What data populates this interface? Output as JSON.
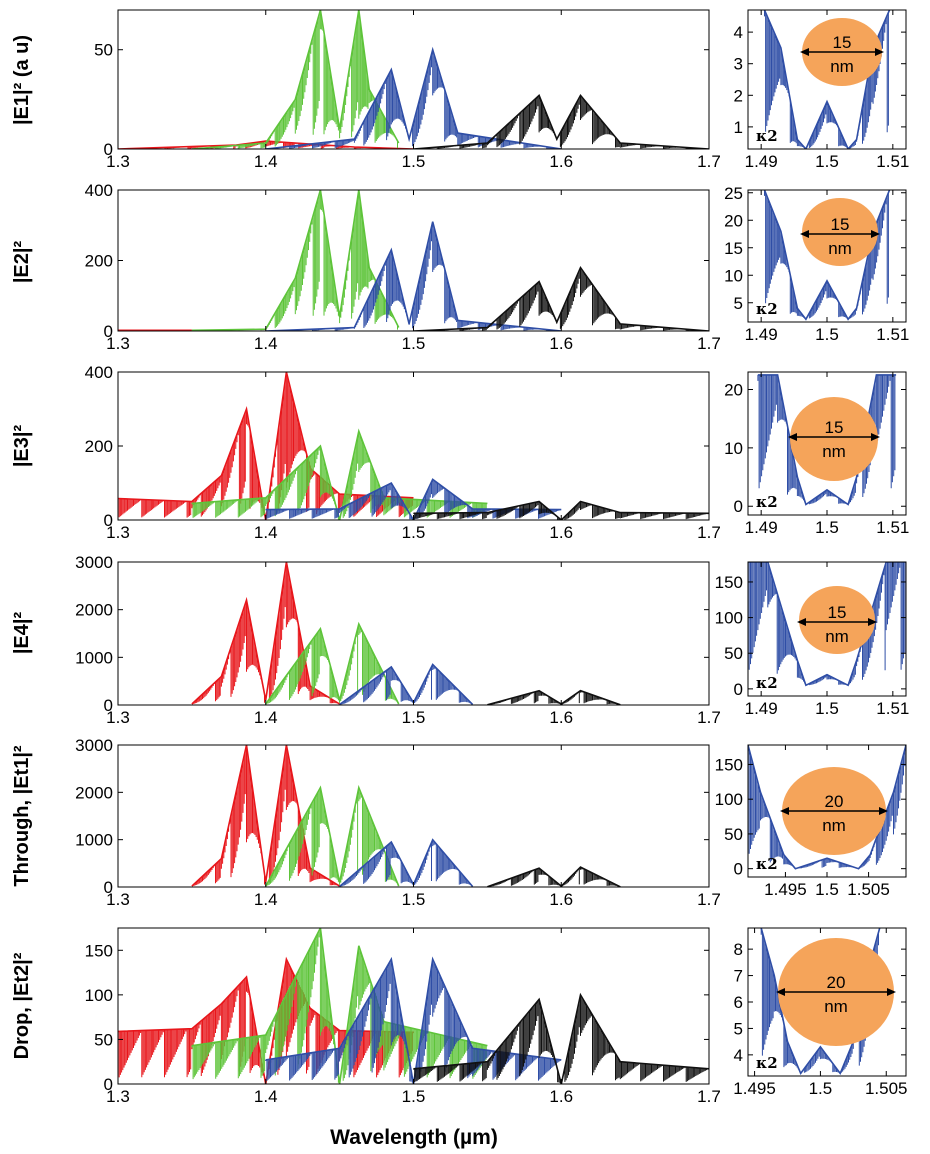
{
  "figure": {
    "xlabel": "Wavelength (µm)"
  },
  "colors": {
    "red": "#e8161b",
    "green": "#5ec43a",
    "blue": "#2f4ea6",
    "black": "#111111",
    "orange": "#f5a45a"
  },
  "chart_data": [
    {
      "type": "line",
      "panel": "main-1",
      "ylabel": "|E1|² (a u)",
      "xlim": [
        1.3,
        1.7
      ],
      "ylim": [
        0,
        70
      ],
      "xticks": [
        "1.3",
        "1.4",
        "1.5",
        "1.6",
        "1.7"
      ],
      "yticks": [
        "0",
        "50"
      ],
      "series": [
        {
          "color": "red",
          "x": [
            1.3,
            1.38,
            1.4,
            1.42,
            1.44,
            1.46,
            1.5
          ],
          "y": [
            0,
            2,
            4,
            3,
            2,
            1,
            0
          ]
        },
        {
          "color": "green",
          "x": [
            1.35,
            1.4,
            1.42,
            1.437,
            1.45,
            1.463,
            1.47,
            1.49
          ],
          "y": [
            0,
            3,
            25,
            70,
            10,
            70,
            30,
            3
          ]
        },
        {
          "color": "blue",
          "x": [
            1.4,
            1.46,
            1.485,
            1.497,
            1.513,
            1.53,
            1.6
          ],
          "y": [
            0,
            5,
            40,
            5,
            50,
            8,
            0
          ]
        },
        {
          "color": "black",
          "x": [
            1.5,
            1.55,
            1.585,
            1.597,
            1.613,
            1.64,
            1.7
          ],
          "y": [
            0,
            3,
            27,
            5,
            27,
            3,
            0
          ]
        }
      ]
    },
    {
      "type": "line",
      "panel": "main-2",
      "ylabel": "|E2|²",
      "xlim": [
        1.3,
        1.7
      ],
      "ylim": [
        0,
        400
      ],
      "xticks": [
        "1.3",
        "1.4",
        "1.5",
        "1.6",
        "1.7"
      ],
      "yticks": [
        "0",
        "200",
        "400"
      ],
      "series": [
        {
          "color": "red",
          "x": [
            1.3,
            1.35
          ],
          "y": [
            2,
            2
          ]
        },
        {
          "color": "green",
          "x": [
            1.35,
            1.4,
            1.42,
            1.437,
            1.45,
            1.463,
            1.47,
            1.49
          ],
          "y": [
            2,
            5,
            150,
            400,
            40,
            400,
            180,
            10
          ]
        },
        {
          "color": "blue",
          "x": [
            1.4,
            1.46,
            1.485,
            1.497,
            1.513,
            1.53,
            1.6
          ],
          "y": [
            0,
            10,
            230,
            20,
            310,
            30,
            0
          ]
        },
        {
          "color": "black",
          "x": [
            1.5,
            1.55,
            1.585,
            1.597,
            1.613,
            1.64,
            1.7
          ],
          "y": [
            0,
            10,
            140,
            25,
            180,
            20,
            0
          ]
        }
      ]
    },
    {
      "type": "line",
      "panel": "main-3",
      "ylabel": "|E3|²",
      "xlim": [
        1.3,
        1.7
      ],
      "ylim": [
        0,
        400
      ],
      "xticks": [
        "1.3",
        "1.4",
        "1.5",
        "1.6",
        "1.7"
      ],
      "yticks": [
        "0",
        "200",
        "400"
      ],
      "series": [
        {
          "color": "red",
          "x": [
            1.3,
            1.35,
            1.37,
            1.387,
            1.4,
            1.414,
            1.43,
            1.45,
            1.5
          ],
          "y": [
            58,
            50,
            120,
            300,
            0,
            400,
            140,
            70,
            60
          ]
        },
        {
          "color": "green",
          "x": [
            1.35,
            1.4,
            1.437,
            1.45,
            1.463,
            1.48,
            1.55
          ],
          "y": [
            45,
            60,
            200,
            0,
            240,
            60,
            45
          ]
        },
        {
          "color": "blue",
          "x": [
            1.4,
            1.45,
            1.485,
            1.5,
            1.513,
            1.54,
            1.6
          ],
          "y": [
            28,
            30,
            100,
            0,
            110,
            30,
            28
          ]
        },
        {
          "color": "black",
          "x": [
            1.5,
            1.55,
            1.585,
            1.6,
            1.613,
            1.64,
            1.7
          ],
          "y": [
            18,
            20,
            50,
            0,
            50,
            20,
            18
          ]
        }
      ]
    },
    {
      "type": "line",
      "panel": "main-4",
      "ylabel": "|E4|²",
      "xlim": [
        1.3,
        1.7
      ],
      "ylim": [
        0,
        3000
      ],
      "xticks": [
        "1.3",
        "1.4",
        "1.5",
        "1.6",
        "1.7"
      ],
      "yticks": [
        "0",
        "1000",
        "2000",
        "3000"
      ],
      "series": [
        {
          "color": "red",
          "x": [
            1.35,
            1.37,
            1.387,
            1.4,
            1.414,
            1.43,
            1.45
          ],
          "y": [
            20,
            600,
            2200,
            100,
            3000,
            400,
            20
          ]
        },
        {
          "color": "green",
          "x": [
            1.4,
            1.437,
            1.45,
            1.463,
            1.49
          ],
          "y": [
            20,
            1600,
            100,
            1700,
            20
          ]
        },
        {
          "color": "blue",
          "x": [
            1.45,
            1.485,
            1.5,
            1.513,
            1.54
          ],
          "y": [
            10,
            800,
            50,
            850,
            10
          ]
        },
        {
          "color": "black",
          "x": [
            1.55,
            1.585,
            1.6,
            1.613,
            1.64
          ],
          "y": [
            5,
            300,
            20,
            300,
            5
          ]
        }
      ]
    },
    {
      "type": "line",
      "panel": "main-5",
      "ylabel": "Through, |Et1|²",
      "xlim": [
        1.3,
        1.7
      ],
      "ylim": [
        0,
        3000
      ],
      "xticks": [
        "1.3",
        "1.4",
        "1.5",
        "1.6",
        "1.7"
      ],
      "yticks": [
        "0",
        "1000",
        "2000",
        "3000"
      ],
      "series": [
        {
          "color": "red",
          "x": [
            1.35,
            1.37,
            1.387,
            1.4,
            1.414,
            1.43,
            1.45
          ],
          "y": [
            20,
            600,
            3000,
            100,
            3000,
            400,
            20
          ]
        },
        {
          "color": "green",
          "x": [
            1.4,
            1.437,
            1.45,
            1.463,
            1.49
          ],
          "y": [
            20,
            2100,
            100,
            2100,
            20
          ]
        },
        {
          "color": "blue",
          "x": [
            1.45,
            1.485,
            1.5,
            1.513,
            1.54
          ],
          "y": [
            10,
            950,
            50,
            1000,
            10
          ]
        },
        {
          "color": "black",
          "x": [
            1.55,
            1.585,
            1.6,
            1.613,
            1.64
          ],
          "y": [
            5,
            400,
            20,
            420,
            5
          ]
        }
      ]
    },
    {
      "type": "line",
      "panel": "main-6",
      "ylabel": "Drop, |Et2|²",
      "xlim": [
        1.3,
        1.7
      ],
      "ylim": [
        0,
        175
      ],
      "xticks": [
        "1.3",
        "1.4",
        "1.5",
        "1.6",
        "1.7"
      ],
      "yticks": [
        "0",
        "50",
        "100",
        "150"
      ],
      "series": [
        {
          "color": "red",
          "x": [
            1.3,
            1.35,
            1.37,
            1.387,
            1.4,
            1.414,
            1.43,
            1.45,
            1.5
          ],
          "y": [
            59,
            62,
            90,
            120,
            0,
            140,
            85,
            60,
            58
          ]
        },
        {
          "color": "green",
          "x": [
            1.35,
            1.4,
            1.437,
            1.45,
            1.463,
            1.48,
            1.55
          ],
          "y": [
            43,
            55,
            175,
            0,
            155,
            70,
            43
          ]
        },
        {
          "color": "blue",
          "x": [
            1.4,
            1.45,
            1.485,
            1.5,
            1.513,
            1.54,
            1.6
          ],
          "y": [
            27,
            40,
            140,
            0,
            140,
            40,
            27
          ]
        },
        {
          "color": "black",
          "x": [
            1.5,
            1.55,
            1.585,
            1.6,
            1.613,
            1.64,
            1.7
          ],
          "y": [
            17,
            25,
            95,
            0,
            100,
            25,
            17
          ]
        }
      ]
    },
    {
      "type": "line",
      "panel": "inset-1",
      "xlim": [
        1.488,
        1.512
      ],
      "ylim": [
        0.3,
        4.7
      ],
      "xticks": [
        "1.49",
        "1.5",
        "1.51"
      ],
      "yticks": [
        "1",
        "2",
        "3",
        "4"
      ],
      "annotation": {
        "value": "15",
        "unit": "nm"
      },
      "kappa": "κ2",
      "series": [
        {
          "color": "blue",
          "x": [
            1.4905,
            1.493,
            1.4955,
            1.4968,
            1.5,
            1.5032,
            1.5045,
            1.507,
            1.5095
          ],
          "y": [
            4.7,
            3.5,
            0.6,
            0.3,
            1.8,
            0.3,
            0.6,
            3.5,
            4.7
          ]
        }
      ]
    },
    {
      "type": "line",
      "panel": "inset-2",
      "xlim": [
        1.488,
        1.512
      ],
      "ylim": [
        1.5,
        25.5
      ],
      "xticks": [
        "1.49",
        "1.5",
        "1.51"
      ],
      "yticks": [
        "5",
        "10",
        "15",
        "20",
        "25"
      ],
      "annotation": {
        "value": "15",
        "unit": "nm"
      },
      "kappa": "κ2",
      "series": [
        {
          "color": "blue",
          "x": [
            1.4905,
            1.493,
            1.4955,
            1.4968,
            1.5,
            1.5032,
            1.5045,
            1.507,
            1.5095
          ],
          "y": [
            25.5,
            18,
            4,
            2,
            9,
            2,
            4,
            18,
            25.5
          ]
        }
      ]
    },
    {
      "type": "line",
      "panel": "inset-3",
      "xlim": [
        1.488,
        1.512
      ],
      "ylim": [
        -1.5,
        23
      ],
      "xticks": [
        "1.49",
        "1.5",
        "1.51"
      ],
      "yticks": [
        "0",
        "10",
        "20"
      ],
      "annotation": {
        "value": "15",
        "unit": "nm"
      },
      "kappa": "κ2",
      "series": [
        {
          "color": "blue",
          "x": [
            1.4895,
            1.4925,
            1.4955,
            1.4968,
            1.5,
            1.5032,
            1.5045,
            1.5075,
            1.5105
          ],
          "y": [
            22.5,
            22.5,
            5,
            0.3,
            2.8,
            0.3,
            5,
            22.5,
            22.5
          ]
        }
      ]
    },
    {
      "type": "line",
      "panel": "inset-4",
      "xlim": [
        1.488,
        1.512
      ],
      "ylim": [
        -10,
        178
      ],
      "xticks": [
        "1.49",
        "1.5",
        "1.51"
      ],
      "yticks": [
        "0",
        "50",
        "100",
        "150"
      ],
      "annotation": {
        "value": "15",
        "unit": "nm"
      },
      "kappa": "κ2",
      "series": [
        {
          "color": "blue",
          "x": [
            1.488,
            1.491,
            1.4955,
            1.4968,
            1.5,
            1.5032,
            1.5045,
            1.509,
            1.512
          ],
          "y": [
            178,
            178,
            40,
            5,
            20,
            5,
            40,
            178,
            178
          ]
        }
      ]
    },
    {
      "type": "line",
      "panel": "inset-5",
      "xlim": [
        1.4905,
        1.5095
      ],
      "ylim": [
        -12,
        178
      ],
      "xticks": [
        "1.495",
        "1.5",
        "1.505"
      ],
      "yticks": [
        "0",
        "50",
        "100",
        "150"
      ],
      "annotation": {
        "value": "20",
        "unit": "nm"
      },
      "kappa": "κ2",
      "series": [
        {
          "color": "blue",
          "x": [
            1.4905,
            1.492,
            1.4948,
            1.4962,
            1.5,
            1.5038,
            1.5052,
            1.508,
            1.5095
          ],
          "y": [
            178,
            110,
            20,
            0,
            15,
            0,
            20,
            110,
            178
          ]
        }
      ]
    },
    {
      "type": "line",
      "panel": "inset-6",
      "xlim": [
        1.4945,
        1.5065
      ],
      "ylim": [
        3.2,
        8.8
      ],
      "xticks": [
        "1.495",
        "1.5",
        "1.505"
      ],
      "yticks": [
        "4",
        "5",
        "6",
        "7",
        "8"
      ],
      "annotation": {
        "value": "20",
        "unit": "nm"
      },
      "kappa": "κ2",
      "series": [
        {
          "color": "blue",
          "x": [
            1.4955,
            1.4965,
            1.4975,
            1.4985,
            1.5,
            1.5015,
            1.5025,
            1.5035,
            1.5045
          ],
          "y": [
            8.8,
            7.0,
            4.5,
            3.3,
            4.3,
            3.3,
            4.5,
            7.0,
            8.8
          ]
        }
      ]
    }
  ]
}
